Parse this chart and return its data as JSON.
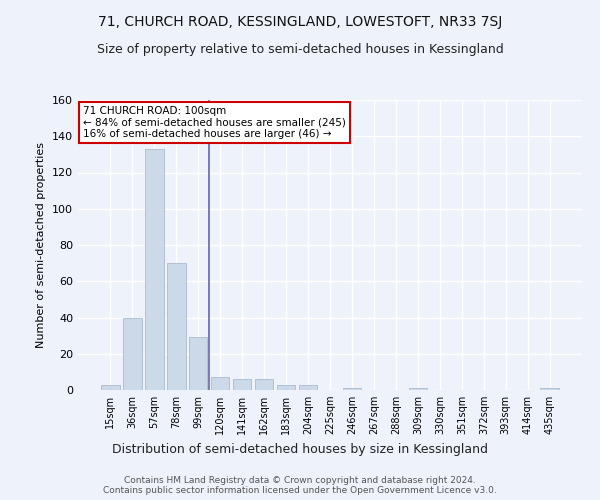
{
  "title": "71, CHURCH ROAD, KESSINGLAND, LOWESTOFT, NR33 7SJ",
  "subtitle": "Size of property relative to semi-detached houses in Kessingland",
  "xlabel": "Distribution of semi-detached houses by size in Kessingland",
  "ylabel": "Number of semi-detached properties",
  "footer_line1": "Contains HM Land Registry data © Crown copyright and database right 2024.",
  "footer_line2": "Contains public sector information licensed under the Open Government Licence v3.0.",
  "categories": [
    "15sqm",
    "36sqm",
    "57sqm",
    "78sqm",
    "99sqm",
    "120sqm",
    "141sqm",
    "162sqm",
    "183sqm",
    "204sqm",
    "225sqm",
    "246sqm",
    "267sqm",
    "288sqm",
    "309sqm",
    "330sqm",
    "351sqm",
    "372sqm",
    "393sqm",
    "414sqm",
    "435sqm"
  ],
  "values": [
    3,
    40,
    133,
    70,
    29,
    7,
    6,
    6,
    3,
    3,
    0,
    1,
    0,
    0,
    1,
    0,
    0,
    0,
    0,
    0,
    1
  ],
  "bar_color": "#ccd9e8",
  "bar_edge_color": "#aabcce",
  "highlight_bar_index": 4,
  "highlight_line_color": "#6666aa",
  "annotation_title": "71 CHURCH ROAD: 100sqm",
  "annotation_line2": "← 84% of semi-detached houses are smaller (245)",
  "annotation_line3": "16% of semi-detached houses are larger (46) →",
  "annotation_box_facecolor": "#ffffff",
  "annotation_box_edgecolor": "#cc0000",
  "ylim": [
    0,
    160
  ],
  "yticks": [
    0,
    20,
    40,
    60,
    80,
    100,
    120,
    140,
    160
  ],
  "bg_color": "#eef2fa",
  "plot_bg_color": "#eef2fa",
  "grid_color": "#ffffff",
  "title_fontsize": 10,
  "subtitle_fontsize": 9,
  "ylabel_text": "Number of semi-detached properties"
}
